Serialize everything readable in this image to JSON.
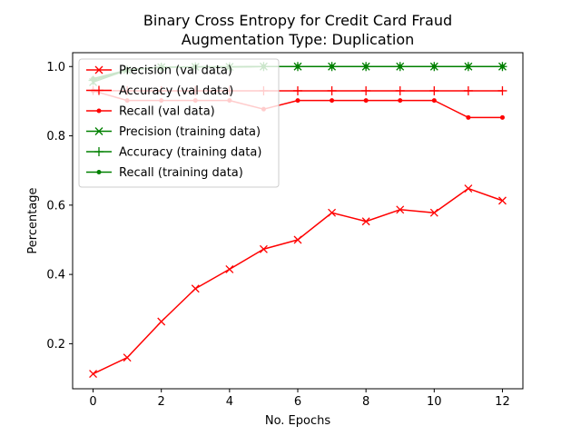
{
  "chart_data": {
    "type": "line",
    "title": [
      "Binary Cross Entropy for Credit Card Fraud",
      "Augmentation Type: Duplication"
    ],
    "xlabel": "No. Epochs",
    "ylabel": "Percentage",
    "xlim": [
      -0.6,
      12.6
    ],
    "ylim": [
      0.07,
      1.04
    ],
    "x_ticks": [
      0,
      2,
      4,
      6,
      8,
      10,
      12
    ],
    "y_ticks": [
      0.2,
      0.4,
      0.6,
      0.8,
      1.0
    ],
    "y_tick_labels": [
      "0.2",
      "0.4",
      "0.6",
      "0.8",
      "1.0"
    ],
    "grid": false,
    "legend_position": "top-left",
    "x": [
      0,
      1,
      2,
      3,
      4,
      5,
      6,
      7,
      8,
      9,
      10,
      11,
      12
    ],
    "series": [
      {
        "name": "Precision (val data)",
        "color": "#ff0000",
        "marker": "x",
        "values": [
          0.113,
          0.16,
          0.264,
          0.359,
          0.415,
          0.473,
          0.5,
          0.578,
          0.553,
          0.587,
          0.578,
          0.648,
          0.613
        ]
      },
      {
        "name": "Accuracy (val data)",
        "color": "#ff0000",
        "marker": "plus",
        "values": [
          0.931,
          0.93,
          0.93,
          0.93,
          0.93,
          0.93,
          0.93,
          0.93,
          0.93,
          0.93,
          0.93,
          0.93,
          0.93
        ]
      },
      {
        "name": "Recall (val data)",
        "color": "#ff0000",
        "marker": "dot",
        "values": [
          0.93,
          0.902,
          0.902,
          0.902,
          0.902,
          0.877,
          0.902,
          0.902,
          0.902,
          0.902,
          0.902,
          0.853,
          0.853
        ]
      },
      {
        "name": "Precision (training data)",
        "color": "#008000",
        "marker": "x",
        "values": [
          0.955,
          0.99,
          0.998,
          0.999,
          0.999,
          1.0,
          1.0,
          1.0,
          1.0,
          1.0,
          1.0,
          1.0,
          1.0
        ]
      },
      {
        "name": "Accuracy (training data)",
        "color": "#008000",
        "marker": "plus",
        "values": [
          0.96,
          0.99,
          0.998,
          0.999,
          0.999,
          1.0,
          1.0,
          1.0,
          1.0,
          1.0,
          1.0,
          1.0,
          1.0
        ]
      },
      {
        "name": "Recall (training data)",
        "color": "#008000",
        "marker": "dot",
        "values": [
          0.965,
          0.99,
          0.998,
          0.999,
          0.999,
          1.0,
          1.0,
          1.0,
          1.0,
          1.0,
          1.0,
          1.0,
          1.0
        ]
      }
    ]
  }
}
